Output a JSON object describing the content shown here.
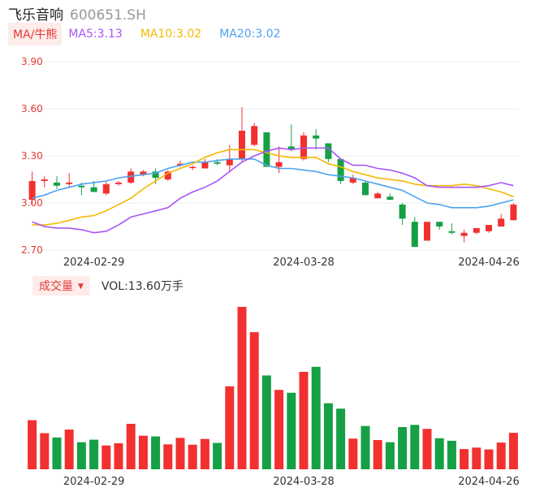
{
  "header": {
    "stock_name": "飞乐音响",
    "stock_code": "600651.SH"
  },
  "ma_legend": {
    "selector_label": "MA/牛熊",
    "items": [
      {
        "label": "MA5:3.13",
        "color": "#a855f7"
      },
      {
        "label": "MA10:3.02",
        "color": "#f5b800"
      },
      {
        "label": "MA20:3.02",
        "color": "#4ea3f0"
      }
    ]
  },
  "volume_legend": {
    "selector_label": "成交量",
    "value_label": "VOL:13.60万手"
  },
  "colors": {
    "up": "#f23030",
    "down": "#15a045",
    "grid": "#eeeeee",
    "axis_text": "#e53935",
    "date_text": "#333333"
  },
  "chart_data": {
    "type": "candlestick",
    "y_axis": {
      "ticks": [
        "3.90",
        "3.60",
        "3.30",
        "3.00",
        "2.70"
      ],
      "ylim": [
        2.7,
        3.9
      ]
    },
    "x_axis": {
      "date_labels": [
        "2024-02-29",
        "2024-03-28",
        "2024-04-26"
      ]
    },
    "grid": true,
    "candles": [
      {
        "o": 3.02,
        "h": 3.2,
        "l": 2.99,
        "c": 3.14
      },
      {
        "o": 3.14,
        "h": 3.17,
        "l": 3.1,
        "c": 3.15
      },
      {
        "o": 3.13,
        "h": 3.17,
        "l": 3.09,
        "c": 3.11
      },
      {
        "o": 3.12,
        "h": 3.19,
        "l": 3.1,
        "c": 3.13
      },
      {
        "o": 3.11,
        "h": 3.13,
        "l": 3.05,
        "c": 3.1
      },
      {
        "o": 3.1,
        "h": 3.14,
        "l": 3.07,
        "c": 3.07
      },
      {
        "o": 3.06,
        "h": 3.14,
        "l": 3.05,
        "c": 3.12
      },
      {
        "o": 3.12,
        "h": 3.14,
        "l": 3.11,
        "c": 3.13
      },
      {
        "o": 3.13,
        "h": 3.22,
        "l": 3.12,
        "c": 3.2
      },
      {
        "o": 3.18,
        "h": 3.21,
        "l": 3.17,
        "c": 3.2
      },
      {
        "o": 3.2,
        "h": 3.22,
        "l": 3.12,
        "c": 3.16
      },
      {
        "o": 3.15,
        "h": 3.21,
        "l": 3.14,
        "c": 3.2
      },
      {
        "o": 3.24,
        "h": 3.27,
        "l": 3.23,
        "c": 3.25
      },
      {
        "o": 3.23,
        "h": 3.24,
        "l": 3.21,
        "c": 3.23
      },
      {
        "o": 3.22,
        "h": 3.28,
        "l": 3.22,
        "c": 3.26
      },
      {
        "o": 3.26,
        "h": 3.28,
        "l": 3.24,
        "c": 3.25
      },
      {
        "o": 3.24,
        "h": 3.37,
        "l": 3.2,
        "c": 3.28
      },
      {
        "o": 3.28,
        "h": 3.61,
        "l": 3.26,
        "c": 3.46
      },
      {
        "o": 3.37,
        "h": 3.51,
        "l": 3.36,
        "c": 3.49
      },
      {
        "o": 3.45,
        "h": 3.45,
        "l": 3.23,
        "c": 3.23
      },
      {
        "o": 3.23,
        "h": 3.36,
        "l": 3.19,
        "c": 3.26
      },
      {
        "o": 3.36,
        "h": 3.5,
        "l": 3.33,
        "c": 3.34
      },
      {
        "o": 3.28,
        "h": 3.45,
        "l": 3.27,
        "c": 3.43
      },
      {
        "o": 3.43,
        "h": 3.47,
        "l": 3.34,
        "c": 3.41
      },
      {
        "o": 3.38,
        "h": 3.38,
        "l": 3.26,
        "c": 3.28
      },
      {
        "o": 3.28,
        "h": 3.28,
        "l": 3.12,
        "c": 3.14
      },
      {
        "o": 3.13,
        "h": 3.18,
        "l": 3.12,
        "c": 3.16
      },
      {
        "o": 3.13,
        "h": 3.14,
        "l": 3.05,
        "c": 3.05
      },
      {
        "o": 3.03,
        "h": 3.07,
        "l": 3.03,
        "c": 3.06
      },
      {
        "o": 3.04,
        "h": 3.06,
        "l": 3.02,
        "c": 3.02
      },
      {
        "o": 2.99,
        "h": 3.0,
        "l": 2.86,
        "c": 2.9
      },
      {
        "o": 2.88,
        "h": 2.91,
        "l": 2.72,
        "c": 2.72
      },
      {
        "o": 2.76,
        "h": 2.88,
        "l": 2.76,
        "c": 2.88
      },
      {
        "o": 2.88,
        "h": 2.88,
        "l": 2.83,
        "c": 2.85
      },
      {
        "o": 2.82,
        "h": 2.87,
        "l": 2.8,
        "c": 2.81
      },
      {
        "o": 2.79,
        "h": 2.83,
        "l": 2.75,
        "c": 2.81
      },
      {
        "o": 2.81,
        "h": 2.84,
        "l": 2.8,
        "c": 2.84
      },
      {
        "o": 2.82,
        "h": 2.86,
        "l": 2.81,
        "c": 2.86
      },
      {
        "o": 2.85,
        "h": 2.93,
        "l": 2.85,
        "c": 2.9
      },
      {
        "o": 2.89,
        "h": 3.0,
        "l": 2.89,
        "c": 2.99
      }
    ],
    "ma5": [
      2.88,
      2.85,
      2.84,
      2.84,
      2.83,
      2.81,
      2.82,
      2.86,
      2.91,
      2.93,
      2.95,
      2.97,
      3.03,
      3.07,
      3.1,
      3.14,
      3.2,
      3.26,
      3.3,
      3.33,
      3.35,
      3.34,
      3.35,
      3.35,
      3.35,
      3.28,
      3.24,
      3.24,
      3.22,
      3.21,
      3.19,
      3.16,
      3.11,
      3.1,
      3.1,
      3.1,
      3.1,
      3.11,
      3.13,
      3.11
    ],
    "ma10": [
      2.86,
      2.86,
      2.87,
      2.89,
      2.91,
      2.92,
      2.95,
      2.99,
      3.03,
      3.09,
      3.14,
      3.19,
      3.22,
      3.25,
      3.29,
      3.32,
      3.34,
      3.34,
      3.34,
      3.32,
      3.3,
      3.29,
      3.29,
      3.29,
      3.25,
      3.23,
      3.2,
      3.18,
      3.16,
      3.15,
      3.14,
      3.12,
      3.11,
      3.11,
      3.11,
      3.12,
      3.11,
      3.09,
      3.07,
      3.04
    ],
    "ma20": [
      3.03,
      3.05,
      3.08,
      3.1,
      3.12,
      3.13,
      3.14,
      3.16,
      3.17,
      3.18,
      3.19,
      3.22,
      3.24,
      3.26,
      3.26,
      3.27,
      3.28,
      3.28,
      3.28,
      3.24,
      3.22,
      3.22,
      3.21,
      3.2,
      3.18,
      3.17,
      3.16,
      3.14,
      3.12,
      3.1,
      3.08,
      3.04,
      3.0,
      2.99,
      2.97,
      2.97,
      2.97,
      2.98,
      3.0,
      3.02
    ],
    "volume": {
      "unit": "万手",
      "values": [
        13.6,
        10.0,
        8.8,
        11.0,
        7.5,
        8.2,
        6.6,
        7.2,
        12.6,
        9.3,
        9.1,
        6.9,
        8.7,
        6.8,
        8.4,
        7.3,
        23.0,
        45.0,
        38.0,
        26.0,
        22.0,
        21.2,
        27.0,
        28.4,
        18.3,
        16.8,
        8.5,
        12.0,
        8.1,
        7.5,
        11.7,
        12.3,
        11.2,
        8.6,
        7.9,
        5.6,
        6.0,
        5.5,
        7.4,
        10.1
      ]
    }
  }
}
